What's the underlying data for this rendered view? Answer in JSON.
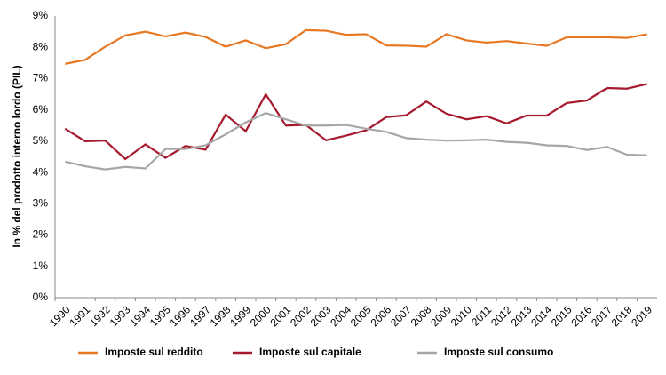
{
  "chart_data": {
    "type": "line",
    "y_label": "In % del prodotto interno lordo (PIL)",
    "categories": [
      "1990",
      "1991",
      "1992",
      "1993",
      "1994",
      "1995",
      "1996",
      "1997",
      "1998",
      "1999",
      "2000",
      "2001",
      "2002",
      "2003",
      "2004",
      "2005",
      "2006",
      "2007",
      "2008",
      "2009",
      "2010",
      "2011",
      "2012",
      "2013",
      "2014",
      "2015",
      "2016",
      "2017",
      "2018",
      "2019"
    ],
    "series": [
      {
        "name": "Imposte sul reddito",
        "color": "#e87722",
        "values": [
          7.47,
          7.6,
          8.02,
          8.38,
          8.5,
          8.35,
          8.47,
          8.33,
          8.02,
          8.22,
          7.97,
          8.1,
          8.55,
          8.53,
          8.4,
          8.42,
          8.06,
          8.05,
          8.02,
          8.42,
          8.22,
          8.15,
          8.2,
          8.12,
          8.05,
          8.32,
          8.32,
          8.32,
          8.3,
          8.42
        ]
      },
      {
        "name": "Imposte sul capitale",
        "color": "#a6192e",
        "values": [
          5.4,
          5.0,
          5.02,
          4.43,
          4.9,
          4.47,
          4.85,
          4.73,
          5.85,
          5.32,
          6.5,
          5.5,
          5.52,
          5.03,
          5.18,
          5.35,
          5.77,
          5.83,
          6.27,
          5.88,
          5.7,
          5.8,
          5.57,
          5.82,
          5.82,
          6.22,
          6.3,
          6.7,
          6.68,
          6.83
        ]
      },
      {
        "name": "Imposte sul consumo",
        "color": "#a6a6a6",
        "values": [
          4.35,
          4.2,
          4.1,
          4.18,
          4.13,
          4.75,
          4.75,
          4.87,
          5.22,
          5.6,
          5.9,
          5.7,
          5.5,
          5.5,
          5.52,
          5.4,
          5.3,
          5.1,
          5.05,
          5.02,
          5.03,
          5.05,
          4.98,
          4.95,
          4.87,
          4.85,
          4.72,
          4.82,
          4.57,
          4.55
        ]
      }
    ],
    "ylim": [
      0,
      9
    ],
    "yticks": [
      {
        "value": 0,
        "label": "0%"
      },
      {
        "value": 1,
        "label": "1%"
      },
      {
        "value": 2,
        "label": "2%"
      },
      {
        "value": 3,
        "label": "3%"
      },
      {
        "value": 4,
        "label": "4%"
      },
      {
        "value": 5,
        "label": "5%"
      },
      {
        "value": 6,
        "label": "6%"
      },
      {
        "value": 7,
        "label": "7%"
      },
      {
        "value": 8,
        "label": "8%"
      },
      {
        "value": 9,
        "label": "9%"
      }
    ],
    "grid": false,
    "legend": "bottom"
  }
}
